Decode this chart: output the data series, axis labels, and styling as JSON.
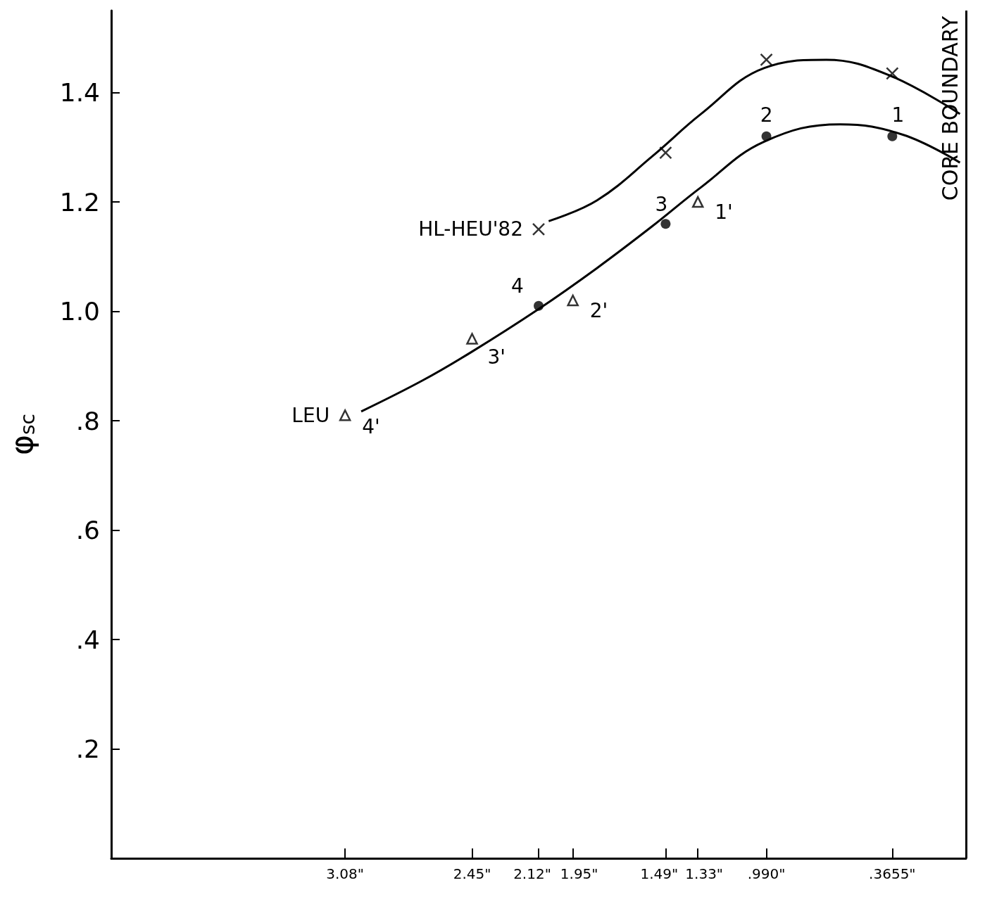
{
  "chart_data": {
    "type": "scatter",
    "ylabel": "φ$_{sc}$",
    "xlim": [
      4.24,
      0
    ],
    "ylim": [
      0,
      1.55
    ],
    "xticks": [
      {
        "value": 3.08,
        "label": "3.08\""
      },
      {
        "value": 2.45,
        "label": "2.45\""
      },
      {
        "value": 2.12,
        "label": "2.12\""
      },
      {
        "value": 1.95,
        "label": "1.95\""
      },
      {
        "value": 1.49,
        "label": "1.49\""
      },
      {
        "value": 1.33,
        "label": "1.33\""
      },
      {
        "value": 0.99,
        "label": ".990\""
      },
      {
        "value": 0.3655,
        "label": ".3655\""
      }
    ],
    "yticks": [
      {
        "value": 0.2,
        "label": ".2"
      },
      {
        "value": 0.4,
        "label": ".4"
      },
      {
        "value": 0.6,
        "label": ".6"
      },
      {
        "value": 0.8,
        "label": ".8"
      },
      {
        "value": 1.0,
        "label": "1.0"
      },
      {
        "value": 1.2,
        "label": "1.2"
      },
      {
        "value": 1.4,
        "label": "1.4"
      }
    ],
    "grid": false,
    "series": [
      {
        "type": "line",
        "marker": "none",
        "color": "#000000",
        "x": [
          2.07,
          1.83,
          1.555,
          1.314,
          1.0,
          0.693,
          0.383,
          0.03
        ],
        "values": [
          1.165,
          1.203,
          1.284,
          1.361,
          1.445,
          1.46,
          1.432,
          1.361
        ]
      },
      {
        "type": "line",
        "marker": "none",
        "color": "#000000",
        "x": [
          3.0,
          2.694,
          2.452,
          2.125,
          1.831,
          1.555,
          1.314,
          1.003,
          0.624,
          0.313,
          0.03
        ],
        "values": [
          0.817,
          0.874,
          0.926,
          1.003,
          1.079,
          1.156,
          1.227,
          1.31,
          1.342,
          1.323,
          1.272
        ]
      },
      {
        "marker": "cross",
        "color": "#000000",
        "x": [
          2.12,
          1.49,
          0.99,
          0.3655
        ],
        "values": [
          1.15,
          1.29,
          1.46,
          1.435
        ]
      },
      {
        "marker": "circle",
        "color": "#000000",
        "x": [
          2.12,
          1.49,
          0.99,
          0.3655
        ],
        "values": [
          1.01,
          1.16,
          1.32,
          1.32
        ]
      },
      {
        "marker": "triangle",
        "color": "#000000",
        "x": [
          3.08,
          2.45,
          1.95,
          1.33
        ],
        "values": [
          0.81,
          0.95,
          1.02,
          1.2
        ]
      }
    ],
    "ref_lines": [
      {
        "axis": "x",
        "value": 0,
        "label": "CORE BOUNDARY",
        "color": "#000000"
      }
    ],
    "annotations": [
      {
        "text": "HL-HEU'82",
        "x": 2.12,
        "y": 1.15
      },
      {
        "text": "LEU",
        "x": 3.08,
        "y": 0.81
      },
      {
        "text": "1",
        "x": 0.3655,
        "y": 1.32
      },
      {
        "text": "2",
        "x": 0.99,
        "y": 1.32
      },
      {
        "text": "3",
        "x": 1.49,
        "y": 1.16
      },
      {
        "text": "4",
        "x": 2.12,
        "y": 1.01
      },
      {
        "text": "1'",
        "x": 1.33,
        "y": 1.2
      },
      {
        "text": "2'",
        "x": 1.95,
        "y": 1.02
      },
      {
        "text": "3'",
        "x": 2.45,
        "y": 0.95
      },
      {
        "text": "4'",
        "x": 3.08,
        "y": 0.81
      }
    ]
  }
}
